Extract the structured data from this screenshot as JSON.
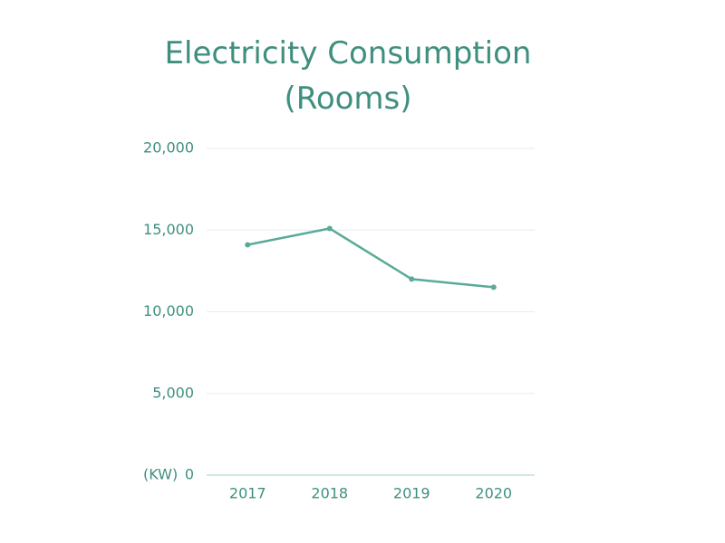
{
  "chart_data": {
    "type": "line",
    "title": "Electricity Consumption (Rooms)",
    "y_label": "(KW)",
    "categories": [
      "2017",
      "2018",
      "2019",
      "2020"
    ],
    "values": [
      14100,
      15100,
      12000,
      11500
    ],
    "color": "#5aaa98",
    "ylim": [
      0,
      20000
    ],
    "yticks": [
      0,
      {
        "value": 5000,
        "label": "5,000"
      },
      {
        "value": 10000,
        "label": "10,000"
      },
      {
        "value": 15000,
        "label": "15,000"
      },
      {
        "value": 20000,
        "label": "20,000"
      }
    ],
    "grid": true
  }
}
